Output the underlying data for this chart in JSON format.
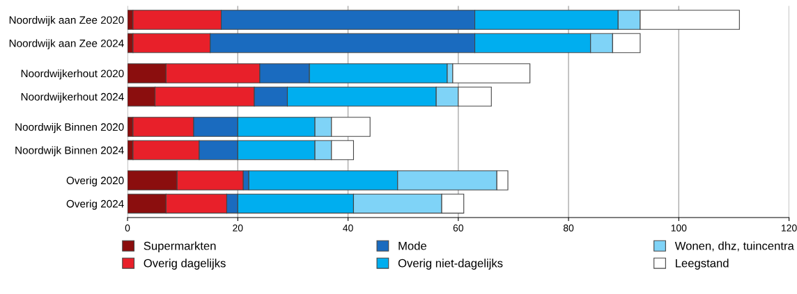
{
  "chart_data": {
    "type": "bar",
    "orientation": "horizontal",
    "stacked": true,
    "categories": [
      "Noordwijk aan Zee 2020",
      "Noordwijk aan Zee 2024",
      "Noordwijkerhout 2020",
      "Noordwijkerhout 2024",
      "Noordwijk Binnen 2020",
      "Noordwijk Binnen 2024",
      "Overig 2020",
      "Overig 2024"
    ],
    "series": [
      {
        "name": "Supermarkten",
        "color": "#8b0e0e",
        "values": [
          1,
          1,
          7,
          5,
          1,
          1,
          9,
          7
        ]
      },
      {
        "name": "Overig dagelijks",
        "color": "#e8202a",
        "values": [
          16,
          14,
          17,
          18,
          11,
          12,
          12,
          11
        ]
      },
      {
        "name": "Mode",
        "color": "#1a6bbf",
        "values": [
          46,
          48,
          9,
          6,
          8,
          7,
          1,
          2
        ]
      },
      {
        "name": "Overig niet-dagelijks",
        "color": "#00aeef",
        "values": [
          26,
          21,
          25,
          27,
          14,
          14,
          27,
          21
        ]
      },
      {
        "name": "Wonen, dhz, tuincentra",
        "color": "#7fd3f7",
        "values": [
          4,
          4,
          1,
          4,
          3,
          3,
          18,
          16
        ]
      },
      {
        "name": "Leegstand",
        "color": "#ffffff",
        "values": [
          18,
          5,
          14,
          6,
          7,
          4,
          2,
          4
        ]
      }
    ],
    "xlim": [
      0,
      120
    ],
    "xticks": [
      0,
      20,
      40,
      60,
      80,
      100,
      120
    ],
    "grid": "x",
    "legend": "bottom"
  }
}
